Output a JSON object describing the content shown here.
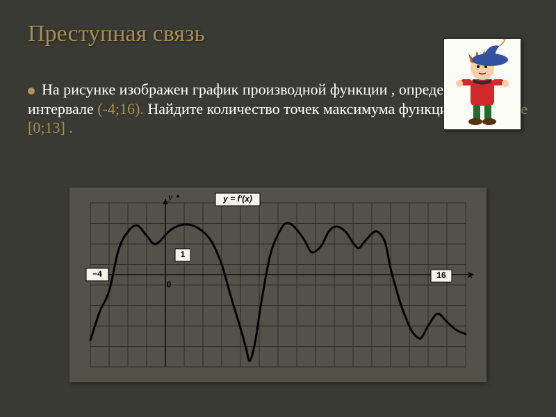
{
  "slide": {
    "title": "Преступная связь",
    "body_prefix": "На рисунке изображен график производной функции , определенной интервале ",
    "interval_text": "(-4;16). ",
    "body_mid": "Найдите количество точек  максимума  функции  на ",
    "segment_text": "отрезке [0;13] .",
    "background_color": "#3a3a34",
    "title_color": "#a88c52",
    "text_color": "#ffffff",
    "highlight_color": "#a88c52",
    "bullet_color": "#b0945a"
  },
  "graph": {
    "panel_bg": "#52524a",
    "grid_color": "#2f2f28",
    "curve_color": "#000000",
    "curve_width": 3,
    "tick_color": "#0a0a0a",
    "label_chip_bg": "#f4f4ea",
    "label_chip_border": "#000000",
    "y_axis_label": "y",
    "x_axis_label": "x",
    "formula_label": "y = f'(x)",
    "label_minus4": "−4",
    "label_1": "1",
    "label_0": "0",
    "label_16": "16",
    "x_domain": [
      -4,
      16
    ],
    "y_domain": [
      -4.5,
      3.5
    ],
    "grid_step_x": 1,
    "grid_step_y": 1,
    "curve_points": [
      [
        -4,
        -3.2
      ],
      [
        -3.5,
        -1.8
      ],
      [
        -3,
        -0.8
      ],
      [
        -2.5,
        1.2
      ],
      [
        -2,
        2.1
      ],
      [
        -1.5,
        2.4
      ],
      [
        -1,
        1.9
      ],
      [
        -0.5,
        1.5
      ],
      [
        0.3,
        2.2
      ],
      [
        1,
        2.45
      ],
      [
        1.7,
        2.3
      ],
      [
        2.4,
        1.7
      ],
      [
        3,
        0.5
      ],
      [
        3.5,
        -1.1
      ],
      [
        4,
        -2.6
      ],
      [
        4.3,
        -3.6
      ],
      [
        4.5,
        -4.2
      ],
      [
        4.8,
        -3.2
      ],
      [
        5.1,
        -1.4
      ],
      [
        5.6,
        1.0
      ],
      [
        6.2,
        2.3
      ],
      [
        6.6,
        2.5
      ],
      [
        7,
        2.2
      ],
      [
        7.4,
        1.7
      ],
      [
        7.8,
        1.1
      ],
      [
        8.3,
        1.4
      ],
      [
        8.7,
        2.1
      ],
      [
        9.1,
        2.35
      ],
      [
        9.6,
        2.1
      ],
      [
        10,
        1.55
      ],
      [
        10.3,
        1.3
      ],
      [
        10.6,
        1.6
      ],
      [
        11,
        2.0
      ],
      [
        11.3,
        2.1
      ],
      [
        11.7,
        1.6
      ],
      [
        12,
        0.3
      ],
      [
        12.3,
        -0.7
      ],
      [
        12.6,
        -1.6
      ],
      [
        13.1,
        -2.7
      ],
      [
        13.5,
        -3.1
      ],
      [
        13.7,
        -3.0
      ],
      [
        14,
        -2.5
      ],
      [
        14.5,
        -1.9
      ],
      [
        15,
        -2.3
      ],
      [
        15.5,
        -2.7
      ],
      [
        16,
        -2.9
      ]
    ]
  },
  "cartoon": {
    "bg": "#fdfdf7",
    "hat_color": "#3252a0",
    "hair_color": "#c85a23",
    "face_color": "#f6cfa6",
    "shirt_color": "#d02a2a",
    "pants_color": "#236b2c",
    "shoe_color": "#55330f"
  }
}
